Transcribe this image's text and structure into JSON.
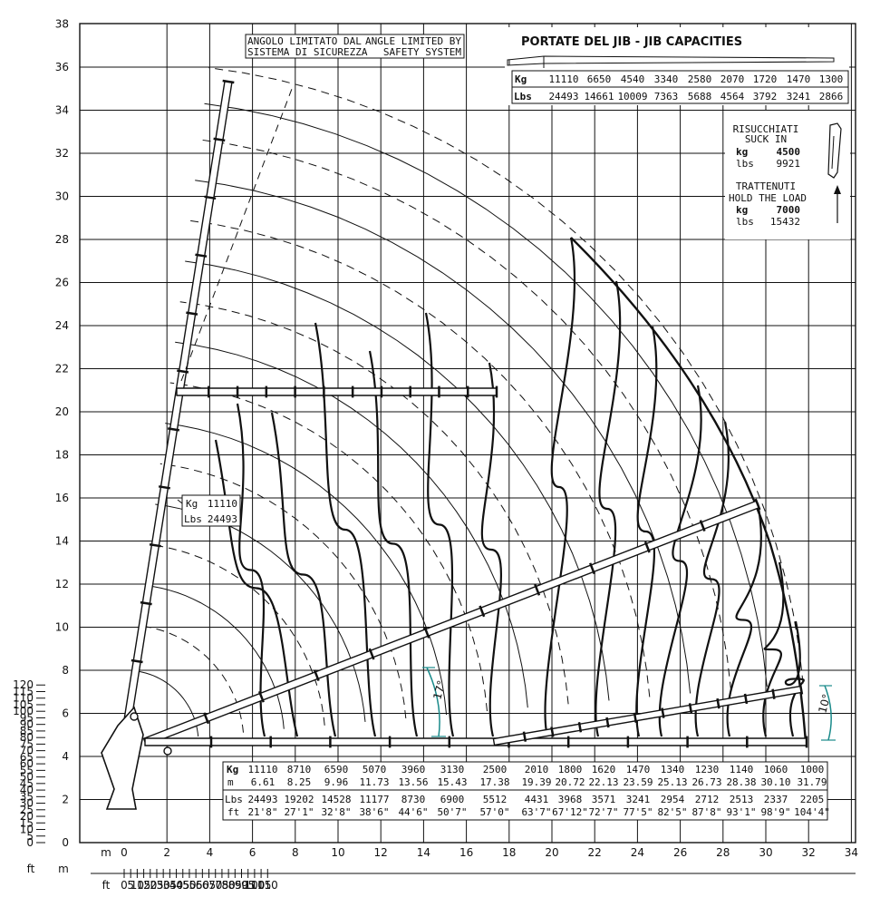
{
  "axes": {
    "y_m_ticks": [
      "0",
      "2",
      "4",
      "6",
      "8",
      "10",
      "12",
      "14",
      "16",
      "18",
      "20",
      "22",
      "24",
      "26",
      "28",
      "30",
      "32",
      "34",
      "36",
      "38"
    ],
    "y_ft_ticks": [
      "0",
      "5",
      "10",
      "15",
      "20",
      "25",
      "30",
      "35",
      "40",
      "45",
      "50",
      "55",
      "60",
      "65",
      "70",
      "75",
      "80",
      "85",
      "90",
      "95",
      "100",
      "105",
      "110",
      "115",
      "120"
    ],
    "x_m_ticks": [
      "0",
      "2",
      "4",
      "6",
      "8",
      "10",
      "12",
      "14",
      "16",
      "18",
      "20",
      "22",
      "24",
      "26",
      "28",
      "30",
      "32",
      "34"
    ],
    "x_ft_ticks": [
      "0",
      "5",
      "10",
      "15",
      "20",
      "25",
      "30",
      "35",
      "40",
      "45",
      "50",
      "55",
      "60",
      "65",
      "70",
      "75",
      "80",
      "85",
      "90",
      "95",
      "100",
      "105",
      "110"
    ],
    "unit_m": "m",
    "unit_ft": "ft",
    "corner_ft": "ft",
    "corner_m": "m"
  },
  "angle_note": {
    "it": "ANGOLO LIMITATO DAL SISTEMA DI SICUREZZA",
    "en": "ANGLE LIMITED BY SAFETY SYSTEM",
    "it_l1": "ANGOLO LIMITATO DAL",
    "it_l2": "SISTEMA DI SICUREZZA",
    "en_l1": "ANGLE LIMITED BY",
    "en_l2": "SAFETY SYSTEM"
  },
  "jib": {
    "title": "PORTATE DEL JIB  -  JIB CAPACITIES",
    "kg_label": "Kg",
    "lbs_label": "Lbs",
    "kg": [
      "11110",
      "6650",
      "4540",
      "3340",
      "2580",
      "2070",
      "1720",
      "1470",
      "1300"
    ],
    "lbs": [
      "24493",
      "14661",
      "10009",
      "7363",
      "5688",
      "4564",
      "3792",
      "3241",
      "2866"
    ]
  },
  "suck_in": {
    "title_it": "RISUCCHIATI",
    "title_en": "SUCK IN",
    "kg_label": "kg",
    "kg": "4500",
    "lbs_label": "lbs",
    "lbs": "9921"
  },
  "hold_load": {
    "title_it": "TRATTENUTI",
    "title_en": "HOLD THE LOAD",
    "kg_label": "kg",
    "kg": "7000",
    "lbs_label": "lbs",
    "lbs": "15432"
  },
  "callout": {
    "kg_label": "Kg",
    "kg": "11110",
    "lbs_label": "Lbs",
    "lbs": "24493"
  },
  "angles": {
    "a1": "17°",
    "a2": "10°"
  },
  "capacity_table": {
    "row_labels": {
      "kg": "Kg",
      "m": "m",
      "lbs": "Lbs",
      "ft": "ft"
    },
    "kg": [
      "11110",
      "8710",
      "6590",
      "5070",
      "3960",
      "3130",
      "2500",
      "2010",
      "1800",
      "1620",
      "1470",
      "1340",
      "1230",
      "1140",
      "1060",
      "1000"
    ],
    "m": [
      "6.61",
      "8.25",
      "9.96",
      "11.73",
      "13.56",
      "15.43",
      "17.38",
      "19.39",
      "20.72",
      "22.13",
      "23.59",
      "25.13",
      "26.73",
      "28.38",
      "30.10",
      "31.79"
    ],
    "lbs": [
      "24493",
      "19202",
      "14528",
      "11177",
      "8730",
      "6900",
      "5512",
      "4431",
      "3968",
      "3571",
      "3241",
      "2954",
      "2712",
      "2513",
      "2337",
      "2205"
    ],
    "ft": [
      "21'8\"",
      "27'1\"",
      "32'8\"",
      "38'6\"",
      "44'6\"",
      "50'7\"",
      "57'0\"",
      "63'7\"",
      "67'12\"",
      "72'7\"",
      "77'5\"",
      "82'5\"",
      "87'8\"",
      "93'1\"",
      "98'9\"",
      "104'4\""
    ]
  },
  "colors": {
    "line": "#111111",
    "dim": "#1a8a8a",
    "grid": "#111111"
  }
}
